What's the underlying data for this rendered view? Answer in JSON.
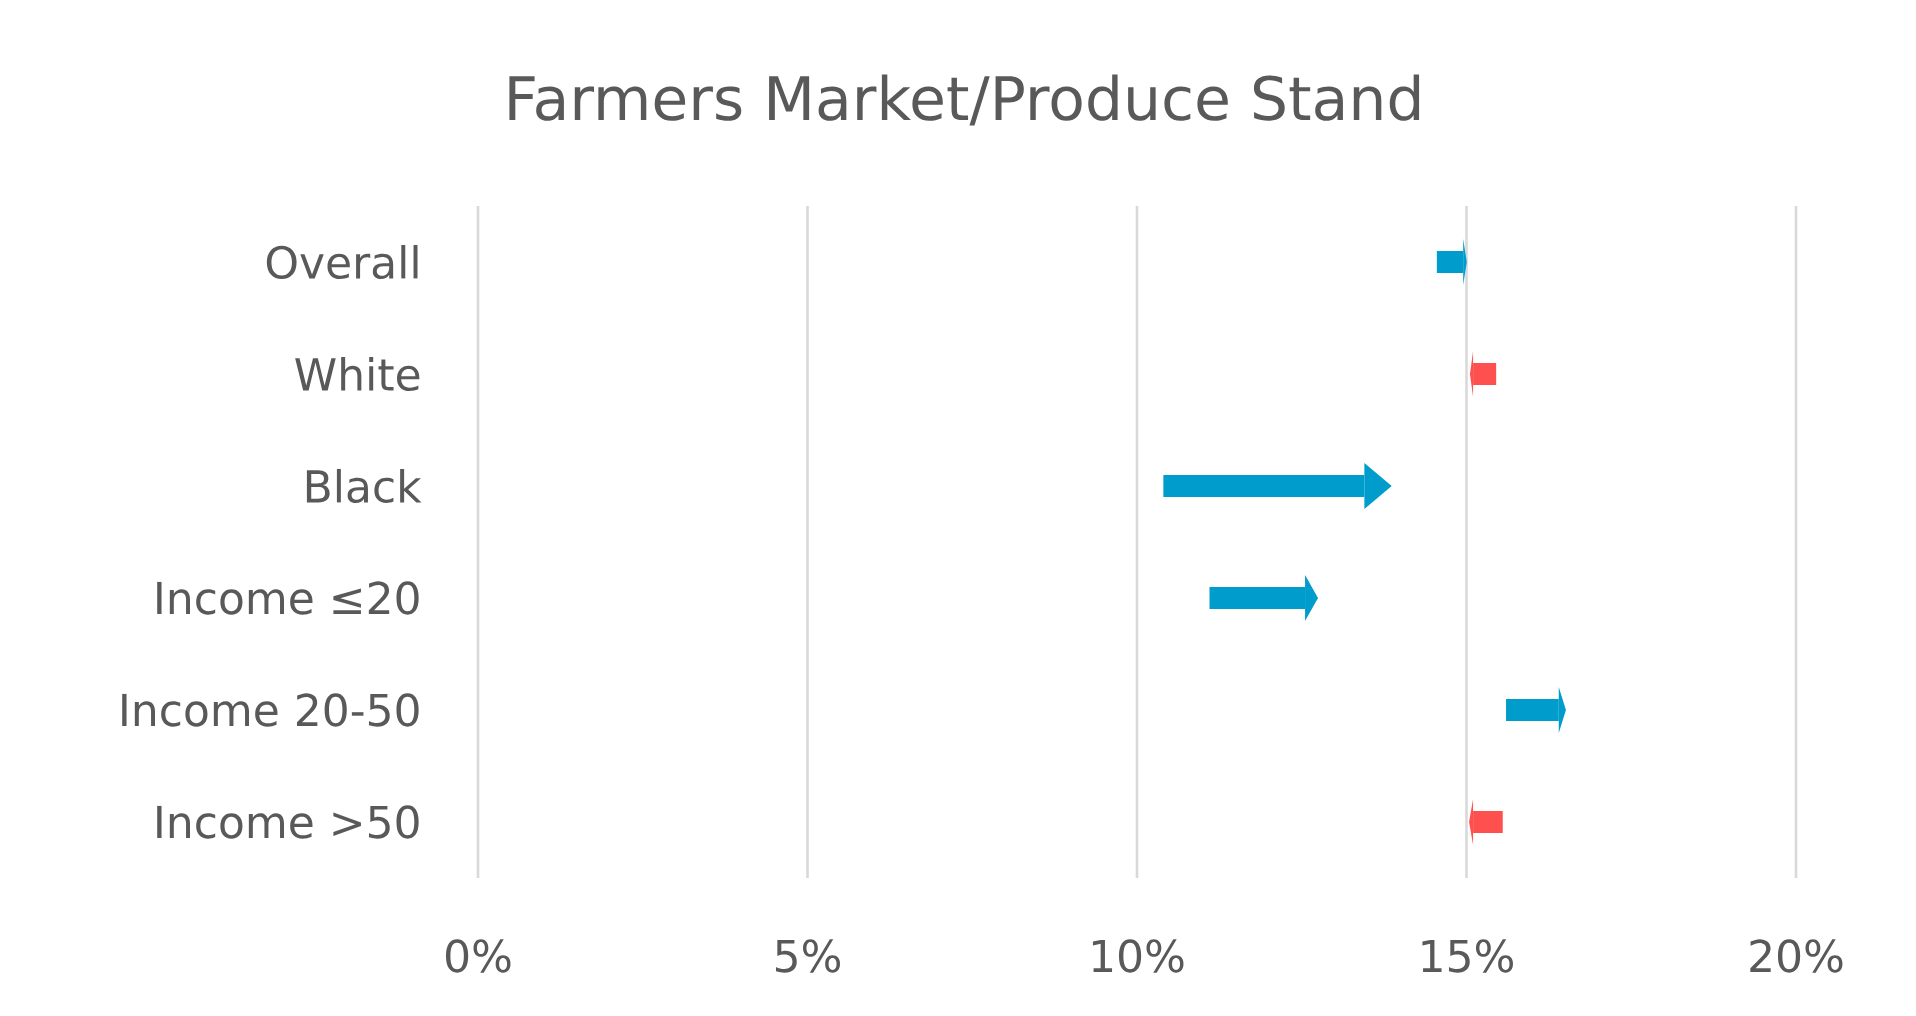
{
  "chart_data": {
    "type": "bar",
    "orientation": "horizontal",
    "title": "Farmers Market/Produce Stand",
    "categories": [
      "Overall",
      "White",
      "Black",
      "Income ≤20",
      "Income 20-50",
      "Income >50"
    ],
    "base": [
      14.55,
      15.45,
      10.4,
      11.1,
      15.6,
      15.55
    ],
    "values": [
      0.4,
      -0.35,
      3.05,
      1.45,
      0.8,
      -0.45
    ],
    "colors": [
      "#009ccc",
      "#ff5050",
      "#009ccc",
      "#009ccc",
      "#009ccc",
      "#ff5050"
    ],
    "xlim": [
      0,
      20
    ],
    "xticks": [
      {
        "value": 0,
        "label": "0%"
      },
      {
        "value": 5,
        "label": "5%"
      },
      {
        "value": 10,
        "label": "10%"
      },
      {
        "value": 15,
        "label": "15%"
      },
      {
        "value": 20,
        "label": "20%"
      }
    ],
    "grid": "x"
  }
}
